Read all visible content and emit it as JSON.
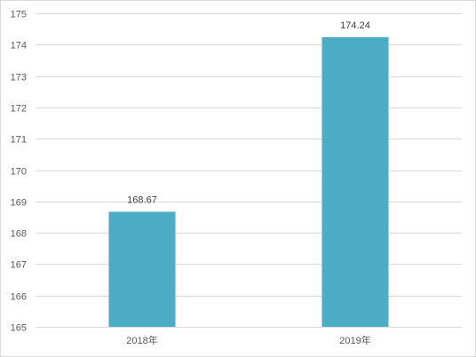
{
  "chart_data": {
    "type": "bar",
    "categories": [
      "2018年",
      "2019年"
    ],
    "values": [
      168.67,
      174.24
    ],
    "data_labels": [
      "168.67",
      "174.24"
    ],
    "title": "",
    "xlabel": "",
    "ylabel": "",
    "ylim": [
      165,
      175
    ],
    "y_ticks": [
      165,
      166,
      167,
      168,
      169,
      170,
      171,
      172,
      173,
      174,
      175
    ],
    "grid": true,
    "legend": "none",
    "bar_color": "#4bacc6"
  }
}
